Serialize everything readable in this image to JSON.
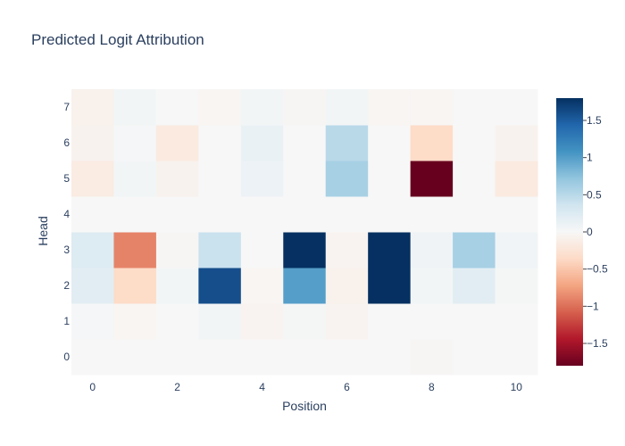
{
  "chart_data": {
    "type": "heatmap",
    "title": "Predicted Logit Attribution",
    "xlabel": "Position",
    "ylabel": "Head",
    "x": [
      0,
      1,
      2,
      3,
      4,
      5,
      6,
      7,
      8,
      9,
      10
    ],
    "y": [
      0,
      1,
      2,
      3,
      4,
      5,
      6,
      7
    ],
    "x_ticks": [
      "0",
      "2",
      "4",
      "6",
      "8",
      "10"
    ],
    "y_ticks": [
      "0",
      "1",
      "2",
      "3",
      "4",
      "5",
      "6",
      "7"
    ],
    "z": [
      [
        0.0,
        0.0,
        0.0,
        0.0,
        0.0,
        0.0,
        0.0,
        0.0,
        -0.02,
        0.0,
        0.0
      ],
      [
        0.02,
        -0.03,
        0.0,
        0.05,
        -0.05,
        0.03,
        -0.05,
        0.0,
        0.0,
        0.0,
        0.0
      ],
      [
        0.2,
        -0.35,
        0.05,
        1.6,
        -0.03,
        1.0,
        -0.08,
        2.0,
        0.05,
        0.2,
        0.03
      ],
      [
        0.25,
        -0.9,
        -0.02,
        0.4,
        0.0,
        2.0,
        -0.05,
        2.0,
        0.08,
        0.6,
        0.07
      ],
      [
        0.0,
        0.0,
        0.0,
        0.0,
        0.0,
        0.0,
        0.0,
        0.0,
        0.0,
        0.0,
        0.0
      ],
      [
        -0.15,
        0.05,
        -0.07,
        0.0,
        0.1,
        0.0,
        0.6,
        0.0,
        -1.9,
        0.0,
        -0.17
      ],
      [
        -0.07,
        0.02,
        -0.17,
        0.0,
        0.12,
        0.0,
        0.5,
        0.0,
        -0.35,
        0.0,
        -0.06
      ],
      [
        -0.08,
        0.05,
        0.0,
        -0.03,
        0.05,
        -0.02,
        0.05,
        -0.03,
        -0.03,
        0.0,
        0.0
      ]
    ],
    "zmin": -1.8,
    "zmax": 1.8,
    "colorscale": "RdBu",
    "colorbar": {
      "ticks": [
        1.5,
        1,
        0.5,
        0,
        -0.5,
        -1,
        -1.5
      ],
      "tick_labels": [
        "1.5",
        "1",
        "0.5",
        "0",
        "−0.5",
        "−1",
        "−1.5"
      ]
    },
    "colors": {
      "text": "#2a3f5f",
      "scale": [
        "#67001f",
        "#b2182b",
        "#d6604d",
        "#f4a582",
        "#fddbc7",
        "#f7f7f7",
        "#d1e5f0",
        "#92c5de",
        "#4393c3",
        "#2166ac",
        "#053061"
      ]
    }
  }
}
